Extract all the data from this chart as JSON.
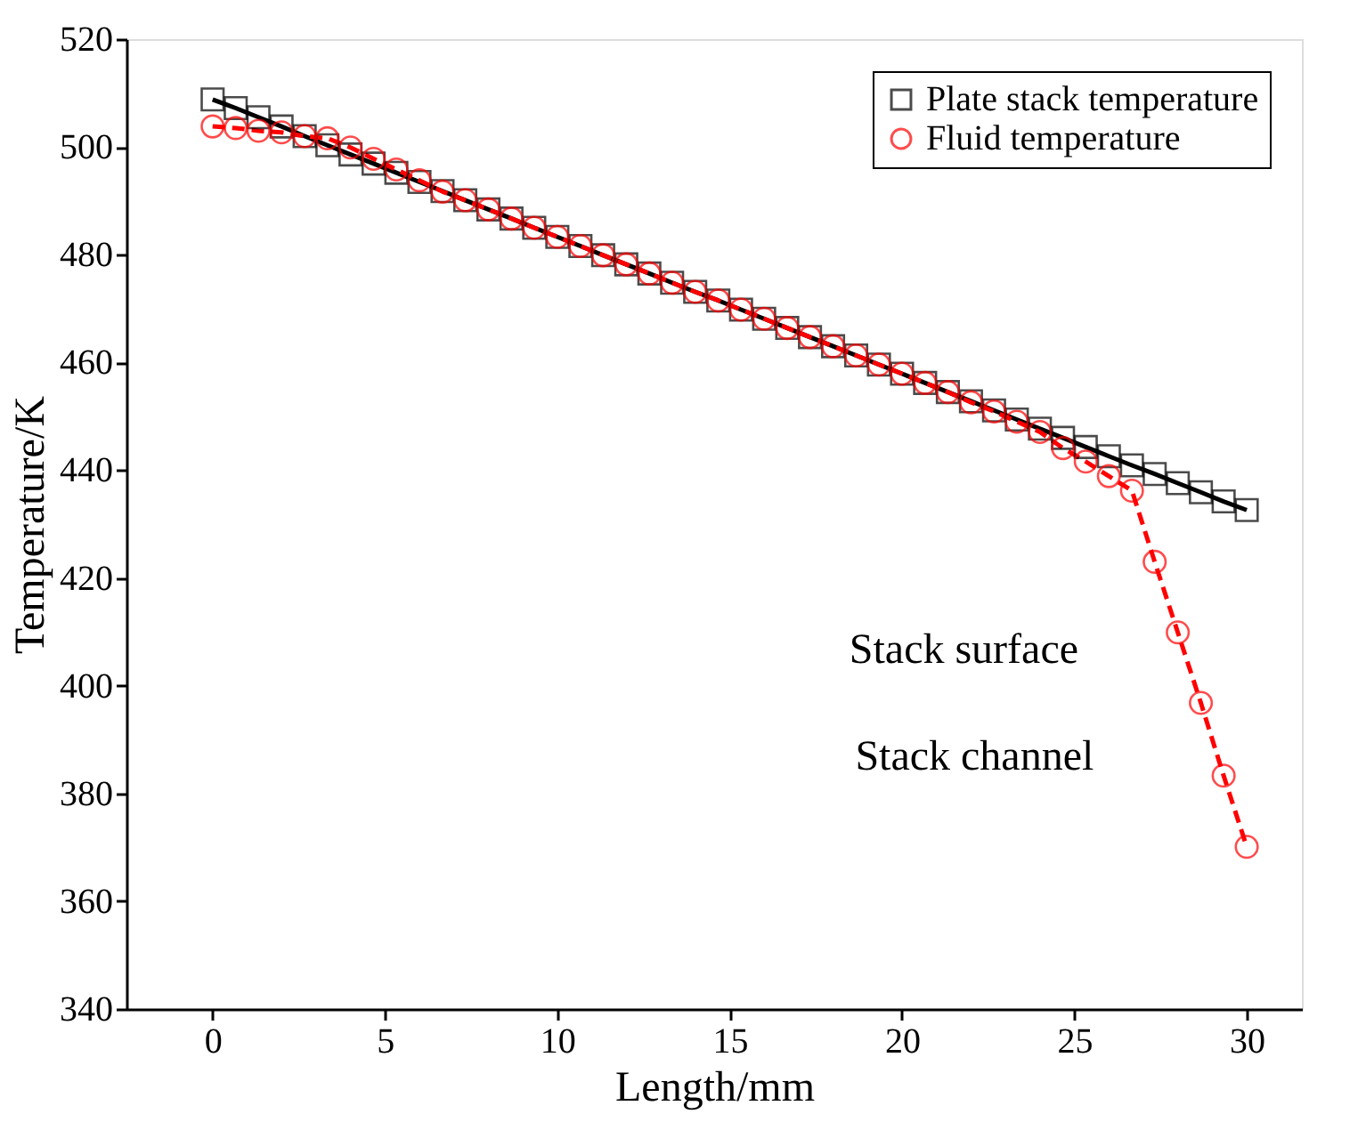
{
  "chart_data": {
    "type": "line",
    "xlabel": "Length/mm",
    "ylabel": "Temperature/K",
    "x": [
      0,
      0.67,
      1.33,
      2,
      2.67,
      3.33,
      4,
      4.67,
      5.33,
      6,
      6.67,
      7.33,
      8,
      8.67,
      9.33,
      10,
      10.67,
      11.33,
      12,
      12.67,
      13.33,
      14,
      14.67,
      15.33,
      16,
      16.67,
      17.33,
      18,
      18.67,
      19.33,
      20,
      20.67,
      21.33,
      22,
      22.67,
      23.33,
      24,
      24.67,
      25.33,
      26,
      26.67,
      27.33,
      28,
      28.67,
      29.33,
      30
    ],
    "series": [
      {
        "name": "Plate stack temperature",
        "color": "#000000",
        "marker": "square",
        "line_style": "solid",
        "values": [
          508.8,
          507.2,
          505.5,
          503.8,
          502.0,
          500.3,
          498.6,
          496.9,
          495.2,
          493.5,
          491.8,
          490.1,
          488.4,
          486.7,
          485.0,
          483.3,
          481.6,
          479.9,
          478.2,
          476.5,
          474.8,
          473.1,
          471.5,
          469.8,
          468.1,
          466.4,
          464.7,
          463.0,
          461.3,
          459.6,
          457.9,
          456.2,
          454.5,
          452.8,
          451.1,
          449.4,
          447.7,
          446.0,
          444.3,
          442.6,
          440.9,
          439.3,
          437.6,
          435.9,
          434.2,
          432.6
        ]
      },
      {
        "name": "Fluid temperature",
        "color": "#ff0000",
        "marker": "circle",
        "line_style": "dashed",
        "values": [
          503.8,
          503.5,
          503.0,
          502.7,
          502.0,
          501.6,
          499.9,
          497.8,
          495.8,
          493.8,
          491.7,
          490.1,
          488.4,
          486.7,
          485.0,
          483.3,
          481.6,
          479.9,
          478.2,
          476.5,
          474.8,
          473.1,
          471.5,
          469.8,
          468.1,
          466.4,
          464.7,
          463.0,
          461.3,
          459.6,
          457.9,
          456.2,
          454.5,
          452.6,
          450.9,
          449.0,
          447.1,
          444.1,
          441.6,
          438.9,
          436.2,
          423.0,
          409.9,
          396.8,
          383.3,
          370.1
        ]
      }
    ],
    "xlim": [
      -2.5,
      31.6
    ],
    "xticks": [
      0,
      5,
      10,
      15,
      20,
      25,
      30
    ],
    "ylim": [
      340,
      520
    ],
    "yticks": [
      340,
      360,
      380,
      400,
      420,
      440,
      460,
      480,
      500,
      520
    ],
    "grid": false,
    "legend": "top right",
    "annotations": [
      "Stack surface",
      "Stack channel"
    ]
  }
}
